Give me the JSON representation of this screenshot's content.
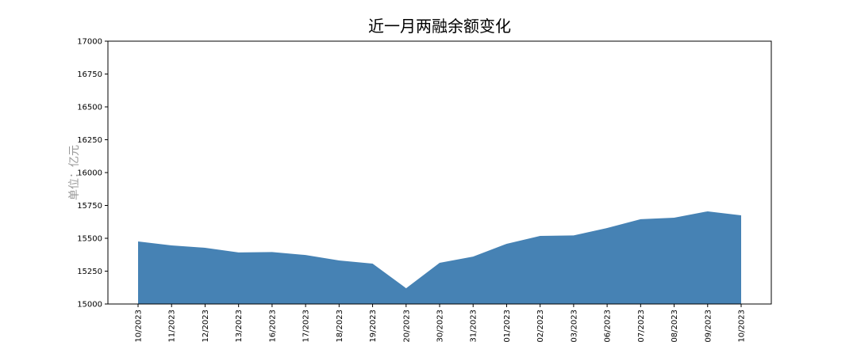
{
  "chart_data": {
    "type": "area",
    "title": "近一月两融余额变化",
    "ylabel": "单位：亿元",
    "categories": [
      "/10/2023",
      "/11/2023",
      "/12/2023",
      "/13/2023",
      "/16/2023",
      "/17/2023",
      "/18/2023",
      "/19/2023",
      "/20/2023",
      "/30/2023",
      "/31/2023",
      "/01/2023",
      "/02/2023",
      "/03/2023",
      "/06/2023",
      "/07/2023",
      "/08/2023",
      "/09/2023",
      "/10/2023"
    ],
    "values": [
      15476,
      15446,
      15428,
      15392,
      15395,
      15373,
      15331,
      15307,
      15120,
      15313,
      15361,
      15458,
      15518,
      15522,
      15578,
      15645,
      15657,
      15705,
      15675
    ],
    "color": "#4682b4",
    "ylim": [
      15000,
      17000
    ],
    "yticks": [
      15000,
      15250,
      15500,
      15750,
      16000,
      16250,
      16500,
      16750,
      17000
    ]
  }
}
